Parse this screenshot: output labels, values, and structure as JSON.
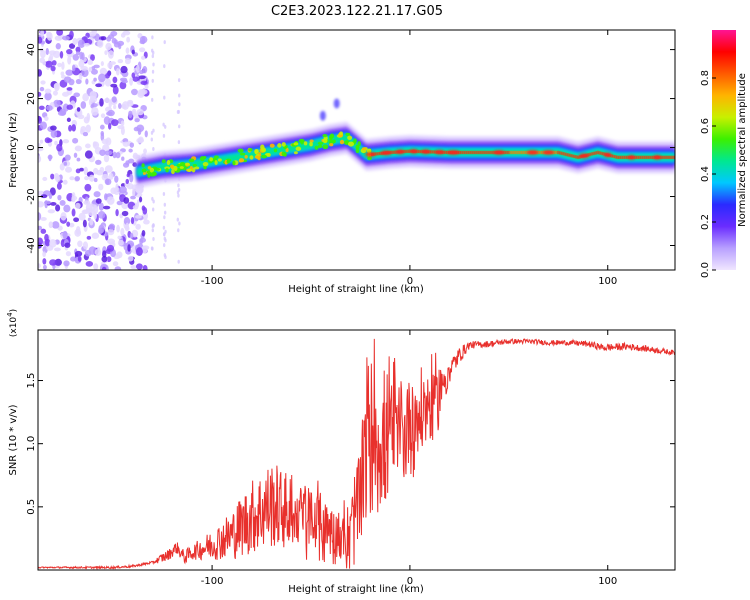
{
  "title": "C2E3.2023.122.21.17.G05",
  "chart_data": [
    {
      "type": "heatmap",
      "xlabel": "Height of straight line (km)",
      "ylabel": "Frequency (Hz)",
      "xlim": [
        -188,
        134
      ],
      "ylim": [
        -50,
        48
      ],
      "xticks": [
        -100,
        0,
        100
      ],
      "yticks": [
        -40,
        -20,
        0,
        20,
        40
      ],
      "colorbar": {
        "label": "Normalized spectral amplitude",
        "range": [
          0,
          1
        ],
        "ticks": [
          0.0,
          0.2,
          0.4,
          0.6,
          0.8
        ],
        "colors": [
          "#f0e6ff",
          "#b8a0ff",
          "#6a2cff",
          "#2a2aff",
          "#00c8ff",
          "#00e890",
          "#3cf000",
          "#c8f000",
          "#ffb400",
          "#ff5a00",
          "#ff0000",
          "#ff1493"
        ]
      },
      "ridge": {
        "x": [
          -138,
          -125,
          -110,
          -95,
          -80,
          -65,
          -50,
          -40,
          -32,
          -22,
          -10,
          0,
          20,
          50,
          75,
          85,
          95,
          105,
          120,
          134
        ],
        "y": [
          -10,
          -8,
          -7,
          -5,
          -3,
          -1,
          1,
          3,
          4,
          -3,
          -2,
          -1.5,
          -2,
          -2,
          -2,
          -4,
          -2,
          -4,
          -4,
          -4
        ]
      },
      "noise_region_x": [
        -188,
        -133
      ],
      "grid": false
    },
    {
      "type": "line",
      "xlabel": "Height of straight line (km)",
      "ylabel": "SNR (10 * v/v)",
      "multiplier_label": "(x10",
      "multiplier_exp": "4",
      "xlim": [
        -188,
        134
      ],
      "ylim": [
        0,
        1.9
      ],
      "xticks": [
        -100,
        0,
        100
      ],
      "yticks": [
        0.5,
        1.0,
        1.5
      ],
      "ytick_labels": [
        "0.5",
        "1.0",
        "1.5"
      ],
      "color": "#e8302c",
      "series": [
        {
          "x": [
            -188,
            -170,
            -150,
            -140,
            -130,
            -122,
            -118,
            -114,
            -110,
            -100,
            -90,
            -80,
            -70,
            -60,
            -50,
            -45,
            -40,
            -35,
            -30,
            -25,
            -22,
            -20,
            -18,
            -15,
            -12,
            -8,
            -5,
            0,
            5,
            10,
            15,
            20,
            25,
            30,
            40,
            50,
            60,
            70,
            80,
            90,
            98,
            110,
            120,
            134
          ],
          "y": [
            0.02,
            0.02,
            0.02,
            0.03,
            0.06,
            0.12,
            0.18,
            0.1,
            0.14,
            0.2,
            0.28,
            0.42,
            0.52,
            0.45,
            0.38,
            0.35,
            0.3,
            0.25,
            0.28,
            0.6,
            1.0,
            0.95,
            1.2,
            0.9,
            1.0,
            1.1,
            1.05,
            1.15,
            1.2,
            1.3,
            1.4,
            1.58,
            1.7,
            1.78,
            1.79,
            1.81,
            1.81,
            1.8,
            1.8,
            1.79,
            1.76,
            1.77,
            1.75,
            1.72
          ]
        }
      ],
      "noise": {
        "x": [
          -188,
          -130,
          -125,
          -110,
          -100,
          -90,
          -80,
          -70,
          -60,
          -50,
          -40,
          -35,
          -30,
          -25,
          -20,
          -15,
          -10,
          -5,
          0,
          5,
          10,
          15,
          20,
          30,
          50,
          80,
          100,
          134
        ],
        "amp": [
          0.005,
          0.01,
          0.04,
          0.06,
          0.12,
          0.2,
          0.3,
          0.35,
          0.3,
          0.28,
          0.25,
          0.25,
          0.3,
          0.5,
          0.6,
          0.5,
          0.5,
          0.45,
          0.4,
          0.35,
          0.3,
          0.25,
          0.1,
          0.03,
          0.02,
          0.02,
          0.03,
          0.02
        ]
      },
      "grid": false
    }
  ]
}
